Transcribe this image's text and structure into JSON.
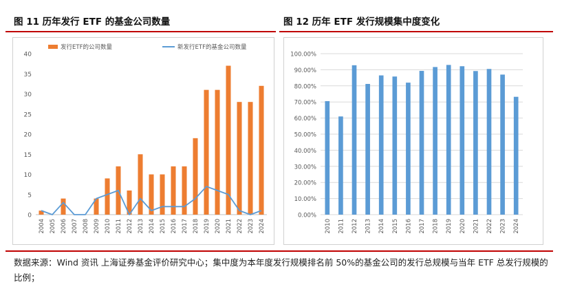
{
  "fig11": {
    "title": "图 11 历年发行 ETF 的基金公司数量"
  },
  "fig12": {
    "title": "图 12 历年 ETF 发行规模集中度变化"
  },
  "source_note": "数据来源：Wind 资讯 上海证券基金评价研究中心；集中度为本年度发行规模排名前 50%的基金公司的发行总规模与当年 ETF 总发行规模的比例；",
  "colors": {
    "orange": "#ed7d31",
    "blue": "#5b9bd5",
    "red_rule": "#c00000",
    "grid": "#d9d9d9"
  },
  "chart_data": [
    {
      "type": "bar",
      "title": "图 11 历年发行 ETF 的基金公司数量",
      "categories": [
        "2004",
        "2005",
        "2006",
        "2007",
        "2008",
        "2009",
        "2010",
        "2011",
        "2012",
        "2013",
        "2014",
        "2015",
        "2016",
        "2017",
        "2018",
        "2019",
        "2020",
        "2021",
        "2022",
        "2023",
        "2024"
      ],
      "series": [
        {
          "name": "发行ETF的公司数量",
          "kind": "bar",
          "color": "#ed7d31",
          "values": [
            1,
            0,
            4,
            0,
            0,
            4,
            9,
            12,
            6,
            15,
            10,
            10,
            12,
            12,
            19,
            31,
            31,
            37,
            28,
            28,
            32
          ]
        },
        {
          "name": "新发行ETF的基金公司数量",
          "kind": "line",
          "color": "#5b9bd5",
          "values": [
            1,
            0,
            3,
            0,
            0,
            4,
            5,
            6,
            0,
            4,
            1,
            2,
            2,
            2,
            4,
            7,
            6,
            5,
            1,
            0,
            1
          ]
        }
      ],
      "ylim": [
        0,
        40
      ],
      "yticks": [
        0,
        5,
        10,
        15,
        20,
        25,
        30,
        35,
        40
      ],
      "legend": "top-left",
      "xlabel": "",
      "ylabel": ""
    },
    {
      "type": "bar",
      "title": "图 12 历年 ETF 发行规模集中度变化",
      "categories": [
        "2010",
        "2011",
        "2012",
        "2013",
        "2014",
        "2015",
        "2016",
        "2017",
        "2018",
        "2019",
        "2020",
        "2021",
        "2022",
        "2023",
        "2024"
      ],
      "series": [
        {
          "name": "集中度",
          "kind": "bar",
          "color": "#5b9bd5",
          "values": [
            70.5,
            61.0,
            92.8,
            81.2,
            86.5,
            85.8,
            82.0,
            89.3,
            91.7,
            93.0,
            92.2,
            89.2,
            90.5,
            87.0,
            73.2
          ]
        }
      ],
      "ylim": [
        0,
        100
      ],
      "yticks": [
        "0.00%",
        "10.00%",
        "20.00%",
        "30.00%",
        "40.00%",
        "50.00%",
        "60.00%",
        "70.00%",
        "80.00%",
        "90.00%",
        "100.00%"
      ],
      "xlabel": "",
      "ylabel": ""
    }
  ]
}
